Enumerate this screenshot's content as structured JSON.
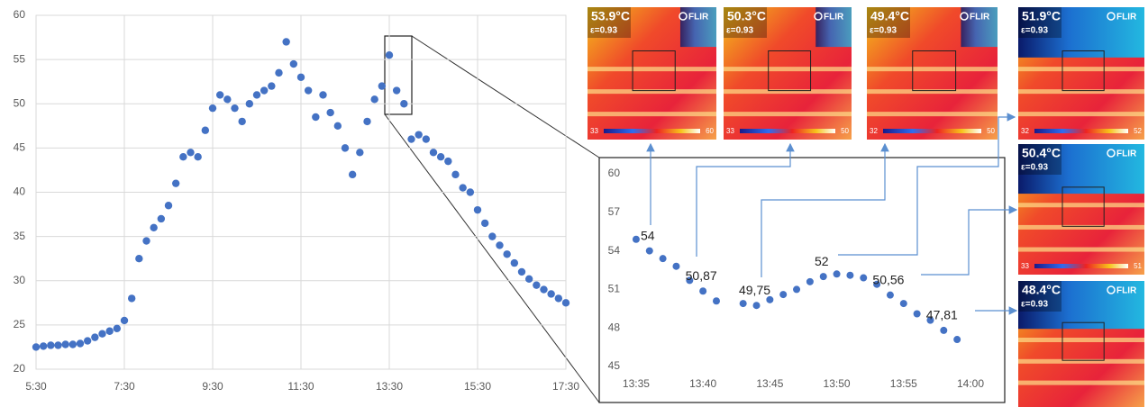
{
  "chart_data": [
    {
      "type": "scatter",
      "color": "#4472c4",
      "grid": true,
      "xlim": [
        330,
        1050
      ],
      "ylim": [
        20,
        60
      ],
      "xticks": [
        {
          "value": 330,
          "label": "5:30"
        },
        {
          "value": 450,
          "label": "7:30"
        },
        {
          "value": 570,
          "label": "9:30"
        },
        {
          "value": 690,
          "label": "11:30"
        },
        {
          "value": 810,
          "label": "13:30"
        },
        {
          "value": 930,
          "label": "15:30"
        },
        {
          "value": 1050,
          "label": "17:30"
        }
      ],
      "yticks": [
        20,
        25,
        30,
        35,
        40,
        45,
        50,
        55,
        60
      ],
      "series": [
        {
          "x": [
            330,
            340,
            350,
            360,
            370,
            380,
            390,
            400,
            410,
            420,
            430,
            440,
            450,
            460,
            470,
            480,
            490,
            500,
            510,
            520,
            530,
            540,
            550,
            560,
            570,
            580,
            590,
            600,
            610,
            620,
            630,
            640,
            650,
            660,
            670,
            680,
            690,
            700,
            710,
            720,
            730,
            740,
            750,
            760,
            770,
            780,
            790,
            800,
            810,
            820,
            830,
            840,
            850,
            860,
            870,
            880,
            890,
            900,
            910,
            920,
            930,
            940,
            950,
            960,
            970,
            980,
            990,
            1000,
            1010,
            1020,
            1030,
            1040,
            1050
          ],
          "values": [
            22.5,
            22.6,
            22.7,
            22.7,
            22.8,
            22.8,
            22.9,
            23.2,
            23.6,
            24.0,
            24.3,
            24.6,
            25.5,
            28,
            32.5,
            34.5,
            36,
            37,
            38.5,
            41,
            44,
            44.5,
            44,
            47,
            49.5,
            51,
            50.5,
            49.5,
            48,
            50,
            51,
            51.5,
            52,
            53.5,
            57,
            54.5,
            53,
            51.5,
            48.5,
            51,
            49,
            47.5,
            45,
            42,
            44.5,
            48,
            50.5,
            52,
            55.5,
            51.5,
            50,
            46,
            46.5,
            46,
            44.5,
            44,
            43.5,
            42,
            40.5,
            40,
            38,
            36.5,
            35,
            34,
            33,
            32,
            31,
            30.2,
            29.5,
            29,
            28.5,
            28,
            27.5
          ]
        }
      ]
    },
    {
      "type": "scatter",
      "color": "#4472c4",
      "grid": false,
      "xlim": [
        814.6,
        841.55
      ],
      "ylim": [
        45,
        60
      ],
      "xticks": [
        {
          "value": 815,
          "label": "13:35"
        },
        {
          "value": 820,
          "label": "13:40"
        },
        {
          "value": 825,
          "label": "13:45"
        },
        {
          "value": 830,
          "label": "13:50"
        },
        {
          "value": 835,
          "label": "13:55"
        },
        {
          "value": 840,
          "label": "14:00"
        }
      ],
      "yticks": [
        45,
        48,
        51,
        54,
        57,
        60
      ],
      "series": [
        {
          "x": [
            815,
            816,
            817,
            818,
            819,
            820,
            821,
            823,
            824,
            825,
            826,
            827,
            828,
            829,
            830,
            831,
            832,
            833,
            834,
            835,
            836,
            837,
            838,
            839
          ],
          "values": [
            54.9,
            54,
            53.4,
            52.8,
            51.7,
            50.87,
            50.1,
            49.9,
            49.75,
            50.2,
            50.6,
            51,
            51.6,
            52,
            52.2,
            52.1,
            51.9,
            51.4,
            50.56,
            49.9,
            49.1,
            48.6,
            47.81,
            47.1
          ],
          "value_labels": [
            null,
            "54",
            null,
            null,
            null,
            "50,87",
            null,
            null,
            "49,75",
            null,
            null,
            null,
            null,
            "52",
            null,
            null,
            null,
            null,
            "50,56",
            null,
            null,
            null,
            "47,81",
            null
          ]
        }
      ]
    }
  ],
  "thermal_images": [
    {
      "temperature": "53.9°C",
      "emissivity": "ε=0.93",
      "brand": "FLIR",
      "scale": [
        "33",
        "60"
      ]
    },
    {
      "temperature": "50.3°C",
      "emissivity": "ε=0.93",
      "brand": "FLIR",
      "scale": [
        "33",
        "50"
      ]
    },
    {
      "temperature": "49.4°C",
      "emissivity": "ε=0.93",
      "brand": "FLIR",
      "scale": [
        "32",
        "50"
      ]
    },
    {
      "temperature": "51.9°C",
      "emissivity": "ε=0.93",
      "brand": "FLIR",
      "scale": [
        "32",
        "52"
      ]
    },
    {
      "temperature": "50.4°C",
      "emissivity": "ε=0.93",
      "brand": "FLIR",
      "scale": [
        "33",
        "51"
      ]
    },
    {
      "temperature": "48.4°C",
      "emissivity": "ε=0.93",
      "brand": "FLIR"
    }
  ]
}
